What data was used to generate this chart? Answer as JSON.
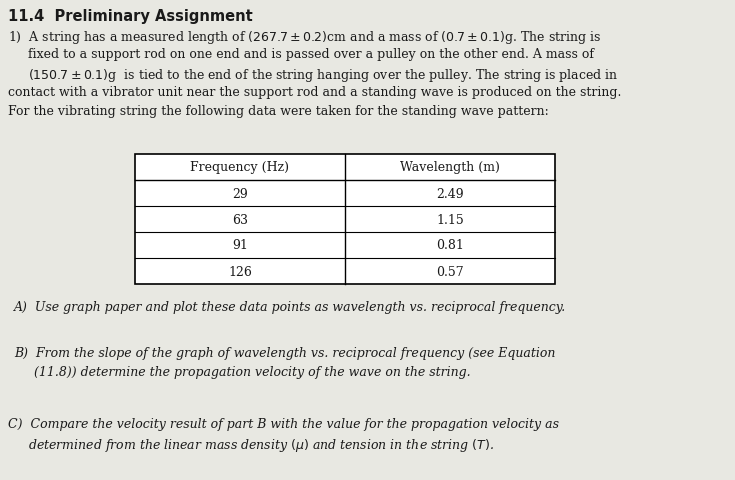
{
  "title": "11.4  Preliminary Assignment",
  "table_headers": [
    "Frequency (Hz)",
    "Wavelength (m)"
  ],
  "table_data": [
    [
      "29",
      "2.49"
    ],
    [
      "63",
      "1.15"
    ],
    [
      "91",
      "0.81"
    ],
    [
      "126",
      "0.57"
    ]
  ],
  "bg_color": "#e8e8e2",
  "text_color": "#1a1a1a",
  "font_size_title": 10.5,
  "font_size_body": 9.0,
  "font_size_table": 9.0
}
